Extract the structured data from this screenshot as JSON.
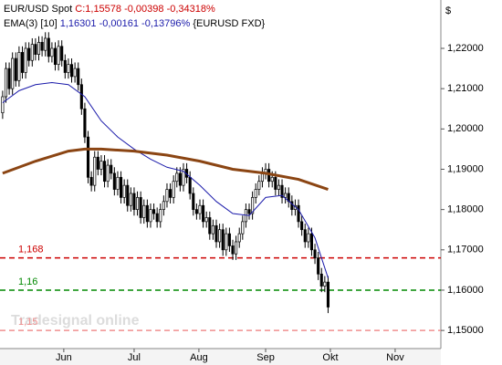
{
  "chart_data": {
    "type": "candlestick",
    "title": "EUR/USD Spot",
    "quote": "C:1,15578 -0,00398 -0,34318%",
    "quote_color": "#cc0000",
    "currency": "$",
    "watermark": "Tradesignal online",
    "up_color": "#ffffff",
    "down_color": "#000000",
    "xlim": [
      -0.8,
      133.3
    ],
    "xticks": [
      {
        "value": 18.6,
        "label": "Jun"
      },
      {
        "value": 40,
        "label": "Jul"
      },
      {
        "value": 59.7,
        "label": "Aug"
      },
      {
        "value": 80,
        "label": "Sep"
      },
      {
        "value": 99.7,
        "label": "Okt"
      },
      {
        "value": 119.4,
        "label": "Nov"
      }
    ],
    "ylim": [
      1.1455,
      1.232
    ],
    "yticks": [
      {
        "value": 1.15,
        "label": "1,15000"
      },
      {
        "value": 1.16,
        "label": "1,16000"
      },
      {
        "value": 1.17,
        "label": "1,17000"
      },
      {
        "value": 1.18,
        "label": "1,18000"
      },
      {
        "value": 1.19,
        "label": "1,19000"
      },
      {
        "value": 1.2,
        "label": "1,20000"
      },
      {
        "value": 1.21,
        "label": "1,21000"
      },
      {
        "value": 1.22,
        "label": "1,22000"
      }
    ],
    "open": [
      1.204,
      1.208,
      1.215,
      1.21,
      1.2175,
      1.212,
      1.219,
      1.214,
      1.22,
      1.217,
      1.221,
      1.2185,
      1.2215,
      1.2195,
      1.2225,
      1.218,
      1.22,
      1.216,
      1.2205,
      1.217,
      1.214,
      1.216,
      1.213,
      1.215,
      1.211,
      1.205,
      1.198,
      1.188,
      1.186,
      1.193,
      1.19,
      1.192,
      1.187,
      1.191,
      1.189,
      1.185,
      1.188,
      1.183,
      1.186,
      1.181,
      1.184,
      1.18,
      1.183,
      1.178,
      1.181,
      1.177,
      1.18,
      1.179,
      1.177,
      1.18,
      1.182,
      1.185,
      1.183,
      1.187,
      1.189,
      1.186,
      1.19,
      1.188,
      1.184,
      1.18,
      1.179,
      1.181,
      1.177,
      1.178,
      1.174,
      1.176,
      1.172,
      1.175,
      1.17,
      1.174,
      1.171,
      1.169,
      1.172,
      1.174,
      1.177,
      1.18,
      1.179,
      1.183,
      1.185,
      1.187,
      1.189,
      1.19,
      1.187,
      1.188,
      1.185,
      1.186,
      1.183,
      1.184,
      1.182,
      1.18,
      1.181,
      1.177,
      1.175,
      1.172,
      1.174,
      1.17,
      1.168,
      1.164,
      1.161,
      1.162
    ],
    "high": [
      1.2095,
      1.2165,
      1.2165,
      1.219,
      1.219,
      1.2205,
      1.2205,
      1.2215,
      1.2215,
      1.2225,
      1.2225,
      1.223,
      1.223,
      1.224,
      1.224,
      1.2215,
      1.2215,
      1.222,
      1.222,
      1.2185,
      1.2175,
      1.2175,
      1.2165,
      1.2165,
      1.2125,
      1.2065,
      1.1995,
      1.1895,
      1.1945,
      1.1945,
      1.1935,
      1.1935,
      1.1925,
      1.1925,
      1.1905,
      1.1895,
      1.1895,
      1.1875,
      1.1875,
      1.1855,
      1.1855,
      1.1845,
      1.1845,
      1.1825,
      1.1825,
      1.1815,
      1.1815,
      1.1805,
      1.1815,
      1.1835,
      1.1865,
      1.1865,
      1.1885,
      1.1905,
      1.1905,
      1.1915,
      1.1915,
      1.1895,
      1.1855,
      1.1815,
      1.1825,
      1.1825,
      1.1795,
      1.1795,
      1.1775,
      1.1775,
      1.1765,
      1.1765,
      1.1755,
      1.1755,
      1.1725,
      1.1735,
      1.1755,
      1.1785,
      1.1815,
      1.1815,
      1.1845,
      1.1865,
      1.1885,
      1.1905,
      1.1915,
      1.1915,
      1.1895,
      1.1895,
      1.1875,
      1.1875,
      1.1855,
      1.1855,
      1.1835,
      1.1825,
      1.1825,
      1.1785,
      1.1765,
      1.1755,
      1.1755,
      1.1715,
      1.1695,
      1.1655,
      1.1635,
      1.1635
    ],
    "low": [
      1.2025,
      1.2065,
      1.2085,
      1.2085,
      1.2105,
      1.2105,
      1.2125,
      1.2125,
      1.2155,
      1.2155,
      1.217,
      1.217,
      1.218,
      1.218,
      1.2165,
      1.2165,
      1.2145,
      1.2145,
      1.2155,
      1.2125,
      1.2125,
      1.2115,
      1.2115,
      1.2095,
      1.2035,
      1.1965,
      1.1865,
      1.1845,
      1.1845,
      1.1885,
      1.1885,
      1.1855,
      1.1855,
      1.1875,
      1.1835,
      1.1835,
      1.1815,
      1.1815,
      1.1795,
      1.1795,
      1.1785,
      1.1785,
      1.1765,
      1.1765,
      1.1755,
      1.1755,
      1.1775,
      1.1755,
      1.1755,
      1.1785,
      1.1805,
      1.1815,
      1.1815,
      1.1855,
      1.1845,
      1.1845,
      1.1865,
      1.1825,
      1.1785,
      1.1775,
      1.1775,
      1.1755,
      1.1755,
      1.1725,
      1.1725,
      1.1705,
      1.1705,
      1.1685,
      1.1685,
      1.1695,
      1.1675,
      1.1675,
      1.1705,
      1.1725,
      1.1755,
      1.1775,
      1.1775,
      1.1815,
      1.1835,
      1.1855,
      1.1875,
      1.1855,
      1.1855,
      1.1835,
      1.1835,
      1.1815,
      1.1815,
      1.1805,
      1.1785,
      1.1785,
      1.1755,
      1.1735,
      1.1705,
      1.1705,
      1.1685,
      1.1665,
      1.1625,
      1.1595,
      1.1595,
      1.1543
    ],
    "close": [
      1.208,
      1.215,
      1.21,
      1.2175,
      1.212,
      1.219,
      1.214,
      1.22,
      1.217,
      1.221,
      1.2185,
      1.2215,
      1.2195,
      1.2225,
      1.218,
      1.22,
      1.216,
      1.2205,
      1.217,
      1.214,
      1.216,
      1.213,
      1.215,
      1.211,
      1.205,
      1.198,
      1.188,
      1.186,
      1.193,
      1.19,
      1.192,
      1.187,
      1.191,
      1.189,
      1.185,
      1.188,
      1.183,
      1.186,
      1.181,
      1.184,
      1.18,
      1.183,
      1.178,
      1.181,
      1.177,
      1.18,
      1.179,
      1.177,
      1.18,
      1.182,
      1.185,
      1.183,
      1.187,
      1.189,
      1.186,
      1.19,
      1.188,
      1.184,
      1.18,
      1.179,
      1.181,
      1.177,
      1.178,
      1.174,
      1.176,
      1.172,
      1.175,
      1.17,
      1.174,
      1.171,
      1.169,
      1.172,
      1.174,
      1.177,
      1.18,
      1.179,
      1.183,
      1.185,
      1.187,
      1.189,
      1.19,
      1.187,
      1.188,
      1.185,
      1.186,
      1.183,
      1.184,
      1.182,
      1.18,
      1.181,
      1.177,
      1.175,
      1.172,
      1.174,
      1.17,
      1.168,
      1.164,
      1.161,
      1.162,
      1.1558
    ],
    "lines": [
      {
        "name": "EMA(3) [10]",
        "quote": "1,16301 -0,00161 -0,13796%",
        "symbol": "{EURUSD FXD}",
        "color": "#1a1aaa",
        "width": 1,
        "x": [
          0,
          5,
          10,
          15,
          20,
          25,
          30,
          35,
          40,
          45,
          50,
          55,
          60,
          65,
          70,
          75,
          80,
          85,
          90,
          95,
          99
        ],
        "values": [
          1.2065,
          1.2095,
          1.211,
          1.2115,
          1.211,
          1.208,
          1.202,
          1.198,
          1.195,
          1.1925,
          1.1905,
          1.1895,
          1.186,
          1.182,
          1.179,
          1.1785,
          1.183,
          1.1835,
          1.18,
          1.173,
          1.163
        ]
      },
      {
        "color": "#8b4513",
        "width": 3,
        "x": [
          0,
          10,
          20,
          25,
          30,
          40,
          50,
          60,
          70,
          80,
          90,
          99
        ],
        "values": [
          1.189,
          1.192,
          1.1945,
          1.195,
          1.195,
          1.1945,
          1.1935,
          1.192,
          1.19,
          1.189,
          1.1875,
          1.185
        ]
      }
    ],
    "hlines": [
      {
        "value": 1.168,
        "label": "1,168",
        "color": "#cc0000"
      },
      {
        "value": 1.16,
        "label": "1,16",
        "color": "#008800"
      },
      {
        "value": 1.15,
        "label": "1,15",
        "color": "#f09090"
      }
    ]
  }
}
